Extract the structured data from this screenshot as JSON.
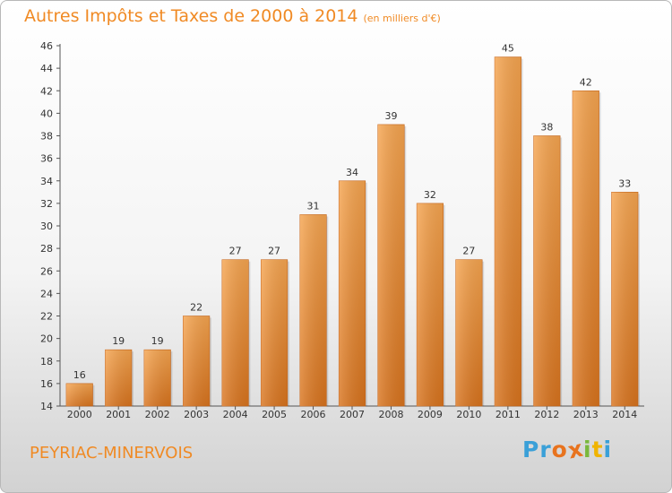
{
  "chart_data": {
    "type": "bar",
    "title": "Autres Impôts et Taxes de 2000 à 2014",
    "unit_note": "(en milliers d'€)",
    "categories": [
      "2000",
      "2001",
      "2002",
      "2003",
      "2004",
      "2005",
      "2006",
      "2007",
      "2008",
      "2009",
      "2010",
      "2011",
      "2012",
      "2013",
      "2014"
    ],
    "values": [
      16,
      19,
      19,
      22,
      27,
      27,
      31,
      34,
      39,
      32,
      27,
      45,
      38,
      42,
      33
    ],
    "data_labels": [
      "16",
      "19",
      "19",
      "22",
      "27",
      "27",
      "31",
      "34",
      "39",
      "32",
      "27",
      "45",
      "38",
      "42",
      "33"
    ],
    "ylim": [
      14,
      46
    ],
    "ytick_step": 2,
    "grid": false,
    "legend": "none",
    "bar_color_top": "#f6a550",
    "bar_color_bottom": "#d9741e",
    "accent_color": "#f08a24"
  },
  "footer": {
    "commune": "PEYRIAC-MINERVOIS",
    "brand": "Proxiti",
    "brand_letters": [
      "P",
      "r",
      "o",
      "x",
      "i",
      "t",
      "i"
    ],
    "brand_colors": [
      "#3aa0d8",
      "#3aa0d8",
      "#e8731e",
      "#e8731e",
      "#7ab83c",
      "#f0b400",
      "#3aa0d8"
    ]
  }
}
